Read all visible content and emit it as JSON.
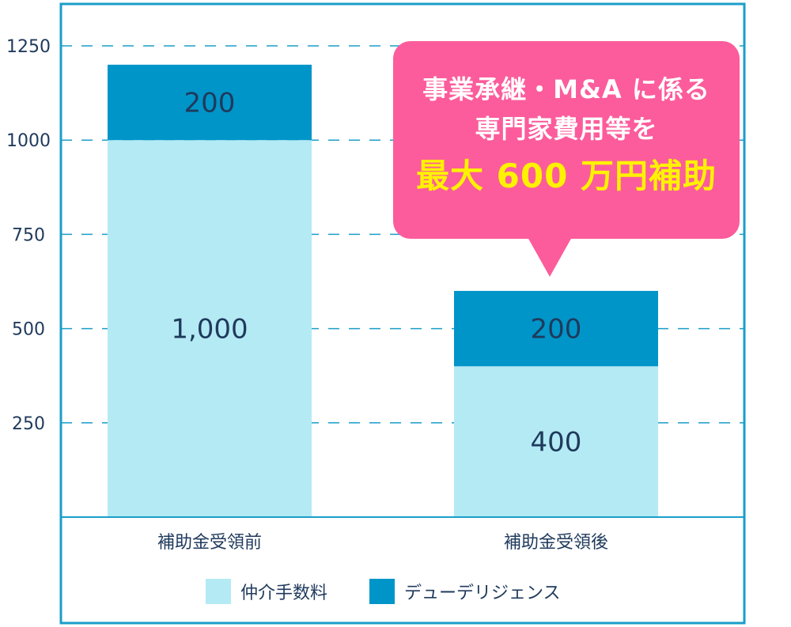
{
  "chart_data": {
    "type": "bar",
    "stacked": true,
    "categories": [
      "補助金受領前",
      "補助金受領後"
    ],
    "series": [
      {
        "name": "仲介手数料",
        "values": [
          1000,
          400
        ],
        "labels": [
          "1,000",
          "400"
        ],
        "color": "#b4eaf4"
      },
      {
        "name": "デューデリジェンス",
        "values": [
          200,
          200
        ],
        "labels": [
          "200",
          "200"
        ],
        "color": "#0095c8"
      }
    ],
    "y_ticks": [
      250,
      500,
      750,
      1000,
      1250
    ],
    "ylim": [
      0,
      1250
    ],
    "grid": true,
    "legend_position": "bottom-center"
  },
  "callout": {
    "line1": "事業承継・M&A に係る",
    "line2": "専門家費用等を",
    "line3": "最大 600 万円補助"
  },
  "colors": {
    "frame": "#1a9ec9",
    "grid": "#1a9ec9",
    "text": "#1f3a5c",
    "callout_bg": "#fc5c9c",
    "callout_highlight": "#fff200"
  }
}
